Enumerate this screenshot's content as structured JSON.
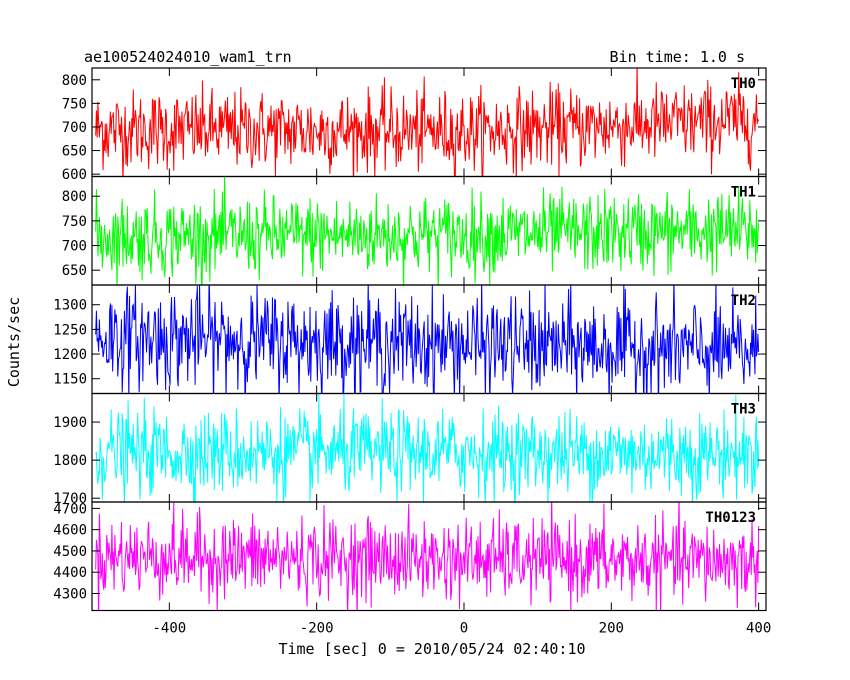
{
  "chart_data": {
    "type": "line",
    "title_left": "ae100524024010_wam1_trn",
    "title_right": "Bin time: 1.0 s",
    "xlabel": "Time [sec] 0 = 2010/05/24 02:40:10",
    "ylabel": "Counts/sec",
    "xlim": [
      -505,
      410
    ],
    "x_ticks": [
      -400,
      -200,
      0,
      200,
      400
    ],
    "x_start": -500,
    "x_end": 400,
    "bin_time": 1.0,
    "grid": false,
    "panels": [
      {
        "name": "TH0",
        "color": "#ff0000",
        "ylim": [
          595,
          825
        ],
        "y_ticks": [
          600,
          650,
          700,
          750,
          800
        ],
        "mean": 695,
        "noise_sd": 42,
        "trend": [
          [
            -500,
            695
          ],
          [
            0,
            690
          ],
          [
            400,
            715
          ]
        ]
      },
      {
        "name": "TH1",
        "color": "#00ff00",
        "ylim": [
          620,
          840
        ],
        "y_ticks": [
          650,
          700,
          750,
          800
        ],
        "mean": 720,
        "noise_sd": 40,
        "trend": [
          [
            -500,
            718
          ],
          [
            0,
            722
          ],
          [
            400,
            730
          ]
        ]
      },
      {
        "name": "TH2",
        "color": "#0000ff",
        "ylim": [
          1120,
          1340
        ],
        "y_ticks": [
          1150,
          1200,
          1250,
          1300
        ],
        "mean": 1225,
        "noise_sd": 50,
        "trend": [
          [
            -500,
            1235
          ],
          [
            0,
            1220
          ],
          [
            400,
            1205
          ]
        ]
      },
      {
        "name": "TH3",
        "color": "#00ffff",
        "ylim": [
          1690,
          1975
        ],
        "y_ticks": [
          1700,
          1800,
          1900
        ],
        "mean": 1820,
        "noise_sd": 55,
        "trend": [
          [
            -500,
            1820
          ],
          [
            0,
            1820
          ],
          [
            400,
            1815
          ]
        ]
      },
      {
        "name": "TH0123",
        "color": "#ff00ff",
        "ylim": [
          4220,
          4730
        ],
        "y_ticks": [
          4300,
          4400,
          4500,
          4600,
          4700
        ],
        "mean": 4465,
        "noise_sd": 95,
        "trend": [
          [
            -500,
            4475
          ],
          [
            0,
            4460
          ],
          [
            400,
            4450
          ]
        ]
      }
    ]
  }
}
